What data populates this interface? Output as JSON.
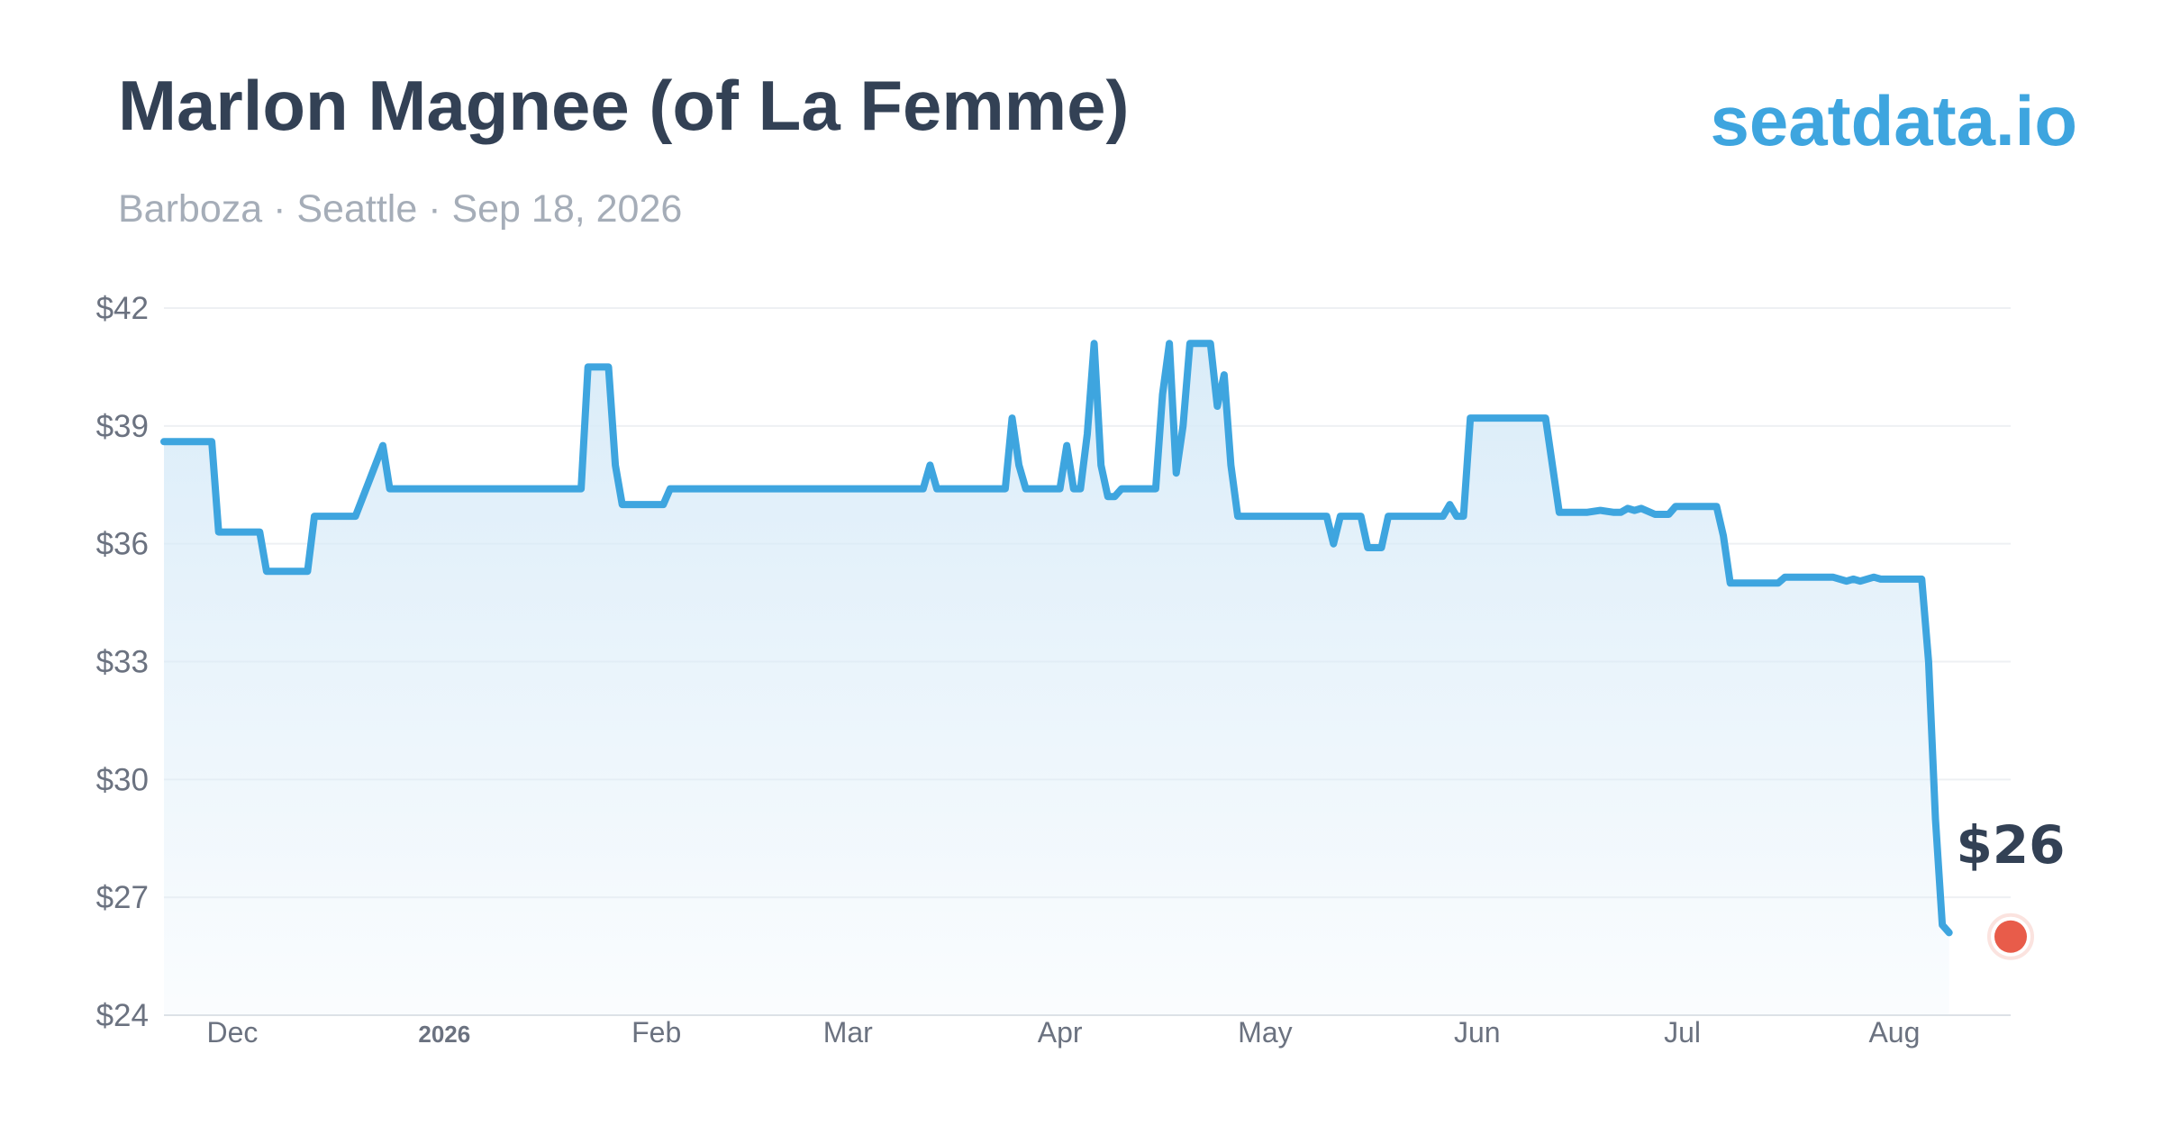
{
  "header": {
    "title": "Marlon Magnee (of La Femme)",
    "subtitle": "Barboza · Seattle · Sep 18, 2026",
    "brand": "seatdata.io"
  },
  "colors": {
    "line": "#3ea5df",
    "area_top": "#d8ebf8",
    "marker": "#e85c4a",
    "grid": "#eef0f3",
    "title": "#334155"
  },
  "chart_data": {
    "type": "area",
    "title": "Marlon Magnee (of La Femme)",
    "xlabel": "",
    "ylabel": "",
    "x_range": [
      "2025-11-21",
      "2026-08-18"
    ],
    "ylim": [
      24,
      42
    ],
    "grid": true,
    "legend": "none",
    "y_ticks": [
      "$24",
      "$27",
      "$30",
      "$33",
      "$36",
      "$39",
      "$42"
    ],
    "y_tick_values": [
      24,
      27,
      30,
      33,
      36,
      39,
      42
    ],
    "x_ticks": [
      {
        "label": "Dec",
        "date": "2025-12-01",
        "bold": false
      },
      {
        "label": "2026",
        "date": "2026-01-01",
        "bold": true
      },
      {
        "label": "Feb",
        "date": "2026-02-01",
        "bold": false
      },
      {
        "label": "Mar",
        "date": "2026-03-01",
        "bold": false
      },
      {
        "label": "Apr",
        "date": "2026-04-01",
        "bold": false
      },
      {
        "label": "May",
        "date": "2026-05-01",
        "bold": false
      },
      {
        "label": "Jun",
        "date": "2026-06-01",
        "bold": false
      },
      {
        "label": "Jul",
        "date": "2026-07-01",
        "bold": false
      },
      {
        "label": "Aug",
        "date": "2026-08-01",
        "bold": false
      }
    ],
    "last_value_label": "$26",
    "last_point": {
      "x": "2026-08-18",
      "y": 26.0
    },
    "series": [
      {
        "points": [
          [
            "2025-11-21",
            38.6
          ],
          [
            "2025-11-28",
            38.6
          ],
          [
            "2025-11-29",
            36.3
          ],
          [
            "2025-12-05",
            36.3
          ],
          [
            "2025-12-06",
            35.3
          ],
          [
            "2025-12-12",
            35.3
          ],
          [
            "2025-12-13",
            36.7
          ],
          [
            "2025-12-19",
            36.7
          ],
          [
            "2025-12-21",
            37.6
          ],
          [
            "2025-12-23",
            38.5
          ],
          [
            "2025-12-24",
            37.4
          ],
          [
            "2026-01-21",
            37.4
          ],
          [
            "2026-01-22",
            40.5
          ],
          [
            "2026-01-25",
            40.5
          ],
          [
            "2026-01-26",
            38.0
          ],
          [
            "2026-01-27",
            37.0
          ],
          [
            "2026-02-02",
            37.0
          ],
          [
            "2026-02-03",
            37.4
          ],
          [
            "2026-03-12",
            37.4
          ],
          [
            "2026-03-13",
            38.0
          ],
          [
            "2026-03-14",
            37.4
          ],
          [
            "2026-03-24",
            37.4
          ],
          [
            "2026-03-25",
            39.2
          ],
          [
            "2026-03-26",
            38.0
          ],
          [
            "2026-03-27",
            37.4
          ],
          [
            "2026-04-01",
            37.4
          ],
          [
            "2026-04-02",
            38.5
          ],
          [
            "2026-04-03",
            37.4
          ],
          [
            "2026-04-04",
            37.4
          ],
          [
            "2026-04-05",
            38.8
          ],
          [
            "2026-04-06",
            41.1
          ],
          [
            "2026-04-07",
            38.0
          ],
          [
            "2026-04-08",
            37.2
          ],
          [
            "2026-04-09",
            37.2
          ],
          [
            "2026-04-10",
            37.4
          ],
          [
            "2026-04-15",
            37.4
          ],
          [
            "2026-04-16",
            39.8
          ],
          [
            "2026-04-17",
            41.1
          ],
          [
            "2026-04-18",
            37.8
          ],
          [
            "2026-04-19",
            39.0
          ],
          [
            "2026-04-20",
            41.1
          ],
          [
            "2026-04-23",
            41.1
          ],
          [
            "2026-04-24",
            39.5
          ],
          [
            "2026-04-25",
            40.3
          ],
          [
            "2026-04-26",
            38.0
          ],
          [
            "2026-04-27",
            36.7
          ],
          [
            "2026-05-10",
            36.7
          ],
          [
            "2026-05-11",
            36.0
          ],
          [
            "2026-05-12",
            36.7
          ],
          [
            "2026-05-15",
            36.7
          ],
          [
            "2026-05-16",
            35.9
          ],
          [
            "2026-05-18",
            35.9
          ],
          [
            "2026-05-19",
            36.7
          ],
          [
            "2026-05-27",
            36.7
          ],
          [
            "2026-05-28",
            37.0
          ],
          [
            "2026-05-29",
            36.7
          ],
          [
            "2026-05-30",
            36.7
          ],
          [
            "2026-05-31",
            39.2
          ],
          [
            "2026-06-11",
            39.2
          ],
          [
            "2026-06-12",
            38.0
          ],
          [
            "2026-06-13",
            36.8
          ],
          [
            "2026-06-15",
            36.8
          ],
          [
            "2026-06-17",
            36.8
          ],
          [
            "2026-06-19",
            36.85
          ],
          [
            "2026-06-21",
            36.8
          ],
          [
            "2026-06-22",
            36.8
          ],
          [
            "2026-06-23",
            36.9
          ],
          [
            "2026-06-24",
            36.85
          ],
          [
            "2026-06-25",
            36.9
          ],
          [
            "2026-06-27",
            36.75
          ],
          [
            "2026-06-29",
            36.75
          ],
          [
            "2026-06-30",
            36.95
          ],
          [
            "2026-07-06",
            36.95
          ],
          [
            "2026-07-07",
            36.2
          ],
          [
            "2026-07-08",
            35.0
          ],
          [
            "2026-07-15",
            35.0
          ],
          [
            "2026-07-16",
            35.15
          ],
          [
            "2026-07-23",
            35.15
          ],
          [
            "2026-07-25",
            35.05
          ],
          [
            "2026-07-26",
            35.1
          ],
          [
            "2026-07-27",
            35.05
          ],
          [
            "2026-07-29",
            35.15
          ],
          [
            "2026-07-30",
            35.1
          ],
          [
            "2026-08-05",
            35.1
          ],
          [
            "2026-08-06",
            33.0
          ],
          [
            "2026-08-07",
            29.0
          ],
          [
            "2026-08-08",
            26.3
          ],
          [
            "2026-08-09",
            26.1
          ]
        ]
      }
    ]
  }
}
